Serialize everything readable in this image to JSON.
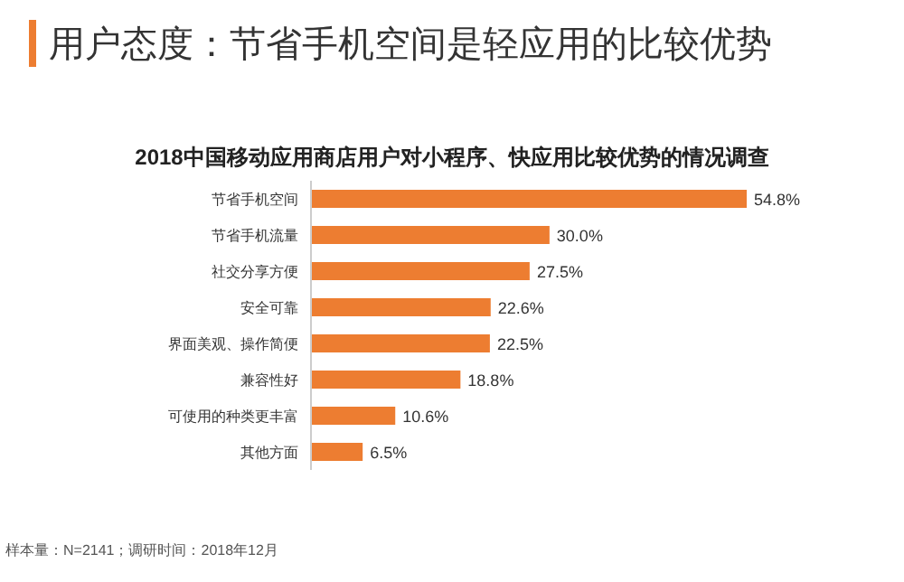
{
  "chart_data": {
    "type": "bar",
    "orientation": "horizontal",
    "title": "用户态度：节省手机空间是轻应用的比较优势",
    "subtitle": "2018中国移动应用商店用户对小程序、快应用比较优势的情况调查",
    "categories": [
      "节省手机空间",
      "节省手机流量",
      "社交分享方便",
      "安全可靠",
      "界面美观、操作简便",
      "兼容性好",
      "可使用的种类更丰富",
      "其他方面"
    ],
    "values": [
      54.8,
      30.0,
      27.5,
      22.6,
      22.5,
      18.8,
      10.6,
      6.5
    ],
    "value_labels": [
      "54.8%",
      "30.0%",
      "27.5%",
      "22.6%",
      "22.5%",
      "18.8%",
      "10.6%",
      "6.5%"
    ],
    "color": "#ed7d31",
    "annotations": [
      "样本量：N=2141；调研时间：2018年12月"
    ]
  }
}
